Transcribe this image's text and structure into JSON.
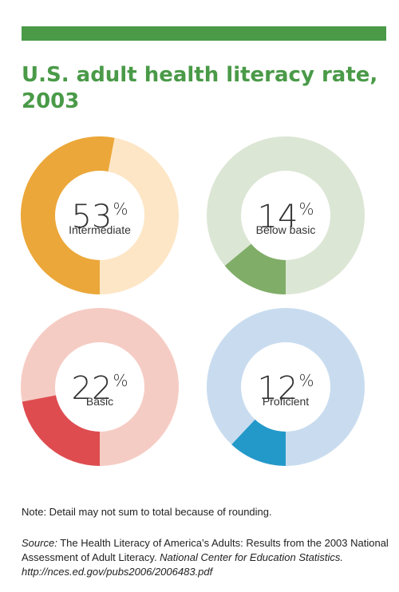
{
  "title_lines": [
    "U.S. adult health literacy rate,",
    "2003"
  ],
  "colors": {
    "bar": "#4a9a48",
    "title": "#4a9a48",
    "intermediate": [
      "#eba739",
      "#fde6c6"
    ],
    "below_basic": [
      "#80ad68",
      "#dce6d5"
    ],
    "basic": [
      "#de4c50",
      "#f5ccc4"
    ],
    "proficient": [
      "#2399c9",
      "#c9dcef"
    ]
  },
  "chart_data": {
    "type": "pie",
    "title": "U.S. adult health literacy rate, 2003",
    "categories": [
      "Intermediate",
      "Below basic",
      "Basic",
      "Proficient"
    ],
    "values": [
      53,
      14,
      22,
      12
    ],
    "unit": "%"
  },
  "donuts": [
    {
      "pct": "53",
      "sign": "%",
      "label": "Intermediate"
    },
    {
      "pct": "14",
      "sign": "%",
      "label": "Below basic"
    },
    {
      "pct": "22",
      "sign": "%",
      "label": "Basic"
    },
    {
      "pct": "12",
      "sign": "%",
      "label": "Proficient"
    }
  ],
  "note": "Note: Detail may not sum to total because of rounding.",
  "source": {
    "label": "Source:",
    "text": " The Health Literacy of America’s Adults: Results from the 2003 National Assessment of Adult Literacy. ",
    "org": "National Center for Education Statistics.",
    "url": "http://nces.ed.gov/pubs2006/2006483.pdf"
  }
}
